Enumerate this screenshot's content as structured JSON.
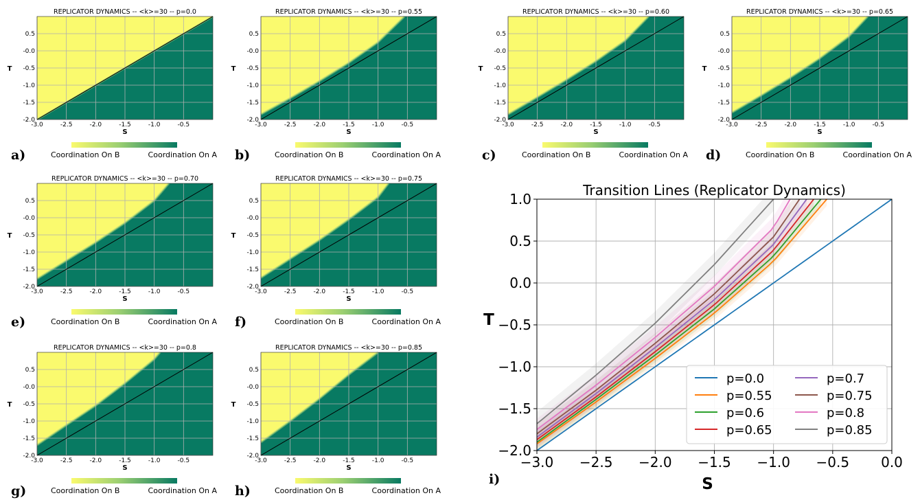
{
  "colors": {
    "coordination_b": "#fafa6e",
    "coordination_a": "#087a62",
    "grid": "#b0b0b0",
    "diagonal": "#000000"
  },
  "panel_axes": {
    "xlabel": "S",
    "ylabel": "T",
    "xticks": [
      "-3.0",
      "-2.5",
      "-2.0",
      "-1.5",
      "-1.0",
      "-0.5"
    ],
    "yticks": [
      "0.5",
      "-0.0",
      "-0.5",
      "-1.0",
      "-1.5",
      "-2.0"
    ],
    "colorbar_left": "Coordination On B",
    "colorbar_right": "Coordination On A"
  },
  "panels": [
    {
      "letter": "a)",
      "title": "REPLICATOR DYNAMICS -- <k>=30 -- p=0.0"
    },
    {
      "letter": "b)",
      "title": "REPLICATOR DYNAMICS -- <k>=30 -- p=0.55"
    },
    {
      "letter": "c)",
      "title": "REPLICATOR DYNAMICS -- <k>=30 -- p=0.60"
    },
    {
      "letter": "d)",
      "title": "REPLICATOR DYNAMICS -- <k>=30 -- p=0.65"
    },
    {
      "letter": "e)",
      "title": "REPLICATOR DYNAMICS -- <k>=30 -- p=0.70"
    },
    {
      "letter": "f)",
      "title": "REPLICATOR DYNAMICS -- <k>=30 -- p=0.75"
    },
    {
      "letter": "g)",
      "title": "REPLICATOR DYNAMICS -- <k>=30 -- p=0.8"
    },
    {
      "letter": "h)",
      "title": "REPLICATOR DYNAMICS -- <k>=30 -- p=0.85"
    }
  ],
  "chart_data": [
    {
      "type": "heatmap",
      "title": "REPLICATOR DYNAMICS -- <k>=30 -- p=0.0",
      "xlabel": "S",
      "ylabel": "T",
      "xlim": [
        -3.0,
        0.0
      ],
      "ylim": [
        -2.0,
        1.0
      ],
      "diagonal": [
        [
          -3.0,
          -2.0
        ],
        [
          0.0,
          1.0
        ]
      ],
      "boundary": {
        "S": [
          -3.0,
          -2.5,
          -2.0,
          -1.5,
          -1.0,
          -0.5,
          0.0
        ],
        "T": [
          -2.0,
          -1.5,
          -1.0,
          -0.5,
          0.0,
          0.5,
          1.0
        ]
      },
      "colorbar": [
        "Coordination On B",
        "Coordination On A"
      ]
    },
    {
      "type": "heatmap",
      "title": "REPLICATOR DYNAMICS -- <k>=30 -- p=0.55",
      "xlabel": "S",
      "ylabel": "T",
      "xlim": [
        -3.0,
        0.0
      ],
      "ylim": [
        -2.0,
        1.0
      ],
      "diagonal": [
        [
          -3.0,
          -2.0
        ],
        [
          0.0,
          1.0
        ]
      ],
      "boundary": {
        "S": [
          -3.0,
          -2.5,
          -2.0,
          -1.5,
          -1.0,
          -0.55
        ],
        "T": [
          -1.85,
          -1.38,
          -0.88,
          -0.35,
          0.25,
          1.0
        ]
      },
      "colorbar": [
        "Coordination On B",
        "Coordination On A"
      ]
    },
    {
      "type": "heatmap",
      "title": "REPLICATOR DYNAMICS -- <k>=30 -- p=0.60",
      "xlabel": "S",
      "ylabel": "T",
      "xlim": [
        -3.0,
        0.0
      ],
      "ylim": [
        -2.0,
        1.0
      ],
      "diagonal": [
        [
          -3.0,
          -2.0
        ],
        [
          0.0,
          1.0
        ]
      ],
      "boundary": {
        "S": [
          -3.0,
          -2.5,
          -2.0,
          -1.5,
          -1.0,
          -0.6
        ],
        "T": [
          -1.85,
          -1.35,
          -0.84,
          -0.3,
          0.3,
          1.0
        ]
      },
      "colorbar": [
        "Coordination On B",
        "Coordination On A"
      ]
    },
    {
      "type": "heatmap",
      "title": "REPLICATOR DYNAMICS -- <k>=30 -- p=0.65",
      "xlabel": "S",
      "ylabel": "T",
      "xlim": [
        -3.0,
        0.0
      ],
      "ylim": [
        -2.0,
        1.0
      ],
      "diagonal": [
        [
          -3.0,
          -2.0
        ],
        [
          0.0,
          1.0
        ]
      ],
      "boundary": {
        "S": [
          -3.0,
          -2.5,
          -2.0,
          -1.5,
          -1.0,
          -0.68
        ],
        "T": [
          -1.8,
          -1.3,
          -0.78,
          -0.22,
          0.42,
          1.0
        ]
      },
      "colorbar": [
        "Coordination On B",
        "Coordination On A"
      ]
    },
    {
      "type": "heatmap",
      "title": "REPLICATOR DYNAMICS -- <k>=30 -- p=0.70",
      "xlabel": "S",
      "ylabel": "T",
      "xlim": [
        -3.0,
        0.0
      ],
      "ylim": [
        -2.0,
        1.0
      ],
      "diagonal": [
        [
          -3.0,
          -2.0
        ],
        [
          0.0,
          1.0
        ]
      ],
      "boundary": {
        "S": [
          -3.0,
          -2.5,
          -2.0,
          -1.5,
          -1.0,
          -0.75
        ],
        "T": [
          -1.78,
          -1.25,
          -0.72,
          -0.15,
          0.5,
          1.0
        ]
      },
      "colorbar": [
        "Coordination On B",
        "Coordination On A"
      ]
    },
    {
      "type": "heatmap",
      "title": "REPLICATOR DYNAMICS -- <k>=30 -- p=0.75",
      "xlabel": "S",
      "ylabel": "T",
      "xlim": [
        -3.0,
        0.0
      ],
      "ylim": [
        -2.0,
        1.0
      ],
      "diagonal": [
        [
          -3.0,
          -2.0
        ],
        [
          0.0,
          1.0
        ]
      ],
      "boundary": {
        "S": [
          -3.0,
          -2.5,
          -2.0,
          -1.5,
          -1.0,
          -0.82
        ],
        "T": [
          -1.75,
          -1.2,
          -0.65,
          -0.05,
          0.6,
          1.0
        ]
      },
      "colorbar": [
        "Coordination On B",
        "Coordination On A"
      ]
    },
    {
      "type": "heatmap",
      "title": "REPLICATOR DYNAMICS -- <k>=30 -- p=0.8",
      "xlabel": "S",
      "ylabel": "T",
      "xlim": [
        -3.0,
        0.0
      ],
      "ylim": [
        -2.0,
        1.0
      ],
      "diagonal": [
        [
          -3.0,
          -2.0
        ],
        [
          0.0,
          1.0
        ]
      ],
      "boundary": {
        "S": [
          -3.0,
          -2.5,
          -2.0,
          -1.5,
          -1.0,
          -0.9
        ],
        "T": [
          -1.7,
          -1.12,
          -0.55,
          0.1,
          0.8,
          1.0
        ]
      },
      "colorbar": [
        "Coordination On B",
        "Coordination On A"
      ]
    },
    {
      "type": "heatmap",
      "title": "REPLICATOR DYNAMICS -- <k>=30 -- p=0.85",
      "xlabel": "S",
      "ylabel": "T",
      "xlim": [
        -3.0,
        0.0
      ],
      "ylim": [
        -2.0,
        1.0
      ],
      "diagonal": [
        [
          -3.0,
          -2.0
        ],
        [
          0.0,
          1.0
        ]
      ],
      "boundary": {
        "S": [
          -3.0,
          -2.5,
          -2.0,
          -1.5,
          -1.0
        ],
        "T": [
          -1.62,
          -1.0,
          -0.35,
          0.35,
          1.0
        ]
      },
      "colorbar": [
        "Coordination On B",
        "Coordination On A"
      ]
    },
    {
      "type": "line",
      "panel": "i)",
      "title": "Transition Lines (Replicator Dynamics)",
      "xlabel": "S",
      "ylabel": "T",
      "xlim": [
        -3.0,
        0.0
      ],
      "ylim": [
        -2.0,
        1.0
      ],
      "xticks": [
        "−3.0",
        "−2.5",
        "−2.0",
        "−1.5",
        "−1.0",
        "−0.5",
        "0.0"
      ],
      "yticks": [
        "−2.0",
        "−1.5",
        "−1.0",
        "−0.5",
        "0.0",
        "0.5",
        "1.0"
      ],
      "grid": true,
      "legend": "lower-right",
      "series": [
        {
          "name": "p=0.0",
          "color": "#1f77b4",
          "x": [
            -3.0,
            -2.5,
            -2.0,
            -1.5,
            -1.0,
            -0.5,
            0.0
          ],
          "y": [
            -2.0,
            -1.5,
            -1.0,
            -0.5,
            0.0,
            0.5,
            1.0
          ]
        },
        {
          "name": "p=0.55",
          "color": "#ff7f0e",
          "x": [
            -3.0,
            -2.5,
            -2.0,
            -1.5,
            -1.0,
            -0.55
          ],
          "y": [
            -1.92,
            -1.42,
            -0.9,
            -0.36,
            0.26,
            1.0
          ]
        },
        {
          "name": "p=0.6",
          "color": "#2ca02c",
          "x": [
            -3.0,
            -2.5,
            -2.0,
            -1.5,
            -1.0,
            -0.6
          ],
          "y": [
            -1.9,
            -1.39,
            -0.86,
            -0.31,
            0.32,
            1.0
          ]
        },
        {
          "name": "p=0.65",
          "color": "#d62728",
          "x": [
            -3.0,
            -2.5,
            -2.0,
            -1.5,
            -1.0,
            -0.66
          ],
          "y": [
            -1.87,
            -1.36,
            -0.82,
            -0.26,
            0.39,
            1.0
          ]
        },
        {
          "name": "p=0.7",
          "color": "#9467bd",
          "x": [
            -3.0,
            -2.5,
            -2.0,
            -1.5,
            -1.0,
            -0.72
          ],
          "y": [
            -1.84,
            -1.32,
            -0.77,
            -0.2,
            0.46,
            1.0
          ]
        },
        {
          "name": "p=0.75",
          "color": "#8c564b",
          "x": [
            -3.0,
            -2.5,
            -2.0,
            -1.5,
            -1.0,
            -0.78
          ],
          "y": [
            -1.8,
            -1.28,
            -0.72,
            -0.13,
            0.55,
            1.0
          ]
        },
        {
          "name": "p=0.8",
          "color": "#e377c2",
          "x": [
            -3.0,
            -2.5,
            -2.0,
            -1.5,
            -1.0,
            -0.86
          ],
          "y": [
            -1.75,
            -1.22,
            -0.65,
            -0.04,
            0.66,
            1.0
          ]
        },
        {
          "name": "p=0.85",
          "color": "#7f7f7f",
          "x": [
            -3.0,
            -2.5,
            -2.0,
            -1.5,
            -1.0
          ],
          "y": [
            -1.68,
            -1.1,
            -0.48,
            0.22,
            1.0
          ]
        }
      ]
    }
  ]
}
